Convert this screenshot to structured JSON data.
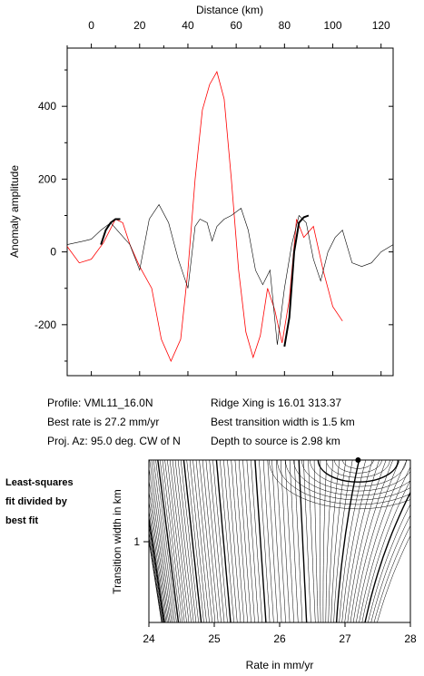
{
  "profile_info": {
    "profile": "Profile: VML11_16.0N",
    "best_rate": "Best rate is 27.2 mm/yr",
    "proj_az": "Proj. Az: 95.0 deg. CW of N",
    "ridge_xing": "Ridge Xing is 16.01 313.37",
    "transition": "Best transition width is 1.5 km",
    "depth": "Depth to source is   2.98 km"
  },
  "side_note": {
    "line1": "Least-squares",
    "line2": "fit divided by",
    "line3": "best fit"
  },
  "colors": {
    "observed": "#000000",
    "model": "#ff0000",
    "fit_segments": "#000000",
    "contours": "#000000"
  },
  "chart_data": [
    {
      "type": "line",
      "title": "",
      "xlabel": "Distance (km)",
      "ylabel": "Anomaly amplitude",
      "xlim": [
        -10,
        125
      ],
      "ylim": [
        -340,
        560
      ],
      "x_ticks": [
        0,
        20,
        40,
        60,
        80,
        100,
        120
      ],
      "y_ticks": [
        -200,
        0,
        200,
        400
      ],
      "grid": false,
      "series": [
        {
          "x": [
            -10,
            -5,
            0,
            5,
            10,
            13,
            16,
            20,
            25,
            29,
            33,
            37,
            40,
            43,
            46,
            49,
            52,
            55,
            58,
            61,
            64,
            67,
            70,
            73,
            76,
            79,
            82,
            85,
            88,
            92,
            96,
            100,
            104
          ],
          "values": [
            15,
            -30,
            -20,
            25,
            90,
            80,
            20,
            -40,
            -100,
            -240,
            -300,
            -240,
            -50,
            200,
            390,
            460,
            495,
            420,
            200,
            -50,
            -220,
            -290,
            -230,
            -100,
            -160,
            -250,
            -130,
            90,
            40,
            70,
            -50,
            -150,
            -190
          ]
        },
        {
          "x": [
            -10,
            -3,
            0,
            4,
            8,
            12,
            16,
            20,
            24,
            28,
            32,
            36,
            40,
            43,
            45,
            48,
            50,
            52,
            55,
            58,
            62,
            65,
            68,
            71,
            74,
            77,
            80,
            83,
            86,
            89,
            92,
            95,
            98,
            101,
            104,
            108,
            112,
            116,
            120,
            125
          ],
          "values": [
            20,
            30,
            35,
            60,
            80,
            50,
            20,
            -50,
            90,
            130,
            80,
            -20,
            -100,
            70,
            90,
            80,
            30,
            70,
            90,
            100,
            120,
            60,
            -50,
            -90,
            -50,
            -255,
            -100,
            20,
            100,
            80,
            -20,
            -80,
            0,
            40,
            60,
            -30,
            -40,
            -30,
            0,
            20
          ]
        }
      ],
      "fit_segments": [
        {
          "x": [
            4,
            6,
            8,
            10,
            12
          ],
          "values": [
            20,
            60,
            80,
            90,
            90
          ]
        },
        {
          "x": [
            80,
            82,
            84,
            86,
            88,
            90
          ],
          "values": [
            -260,
            -180,
            0,
            80,
            95,
            100
          ]
        }
      ]
    },
    {
      "type": "contour",
      "title": "",
      "xlabel": "Rate in mm/yr",
      "ylabel": "Transition width in km",
      "xlim": [
        24,
        28
      ],
      "x_ticks": [
        24,
        25,
        26,
        27,
        28
      ],
      "y_ticks": [
        1
      ],
      "best_fit": {
        "rate": 27.2,
        "transition_width": 1.5
      },
      "contour_lines": 80
    }
  ]
}
